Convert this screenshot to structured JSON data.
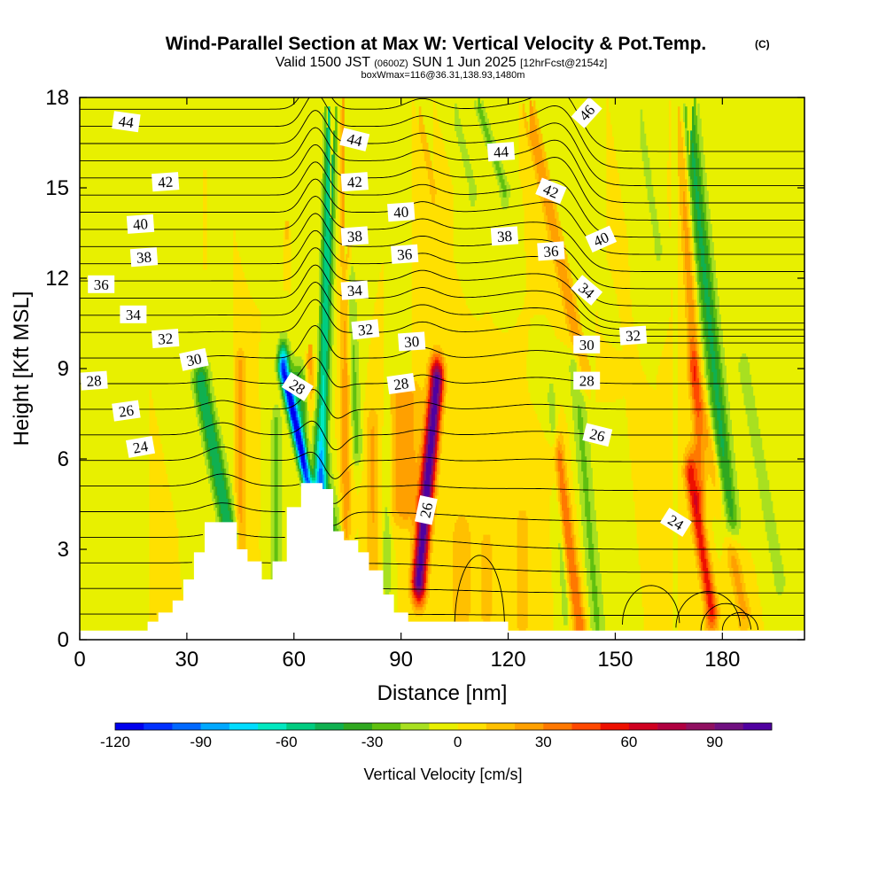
{
  "chart_data": {
    "type": "heatmap",
    "title": "Wind-Parallel Section at Max W: Vertical Velocity & Pot.Temp.",
    "title_mark": "(C)",
    "subtitle": {
      "valid": "Valid 1500 JST",
      "utc": "(0600Z)",
      "date": "SUN 1 Jun 2025",
      "fcst": "[12hrFcst@2154z]",
      "box": "boxWmax=116@36.31,138.93,1480m"
    },
    "xlabel": "Distance [nm]",
    "ylabel": "Height [Kft MSL]",
    "xlim": [
      0,
      203
    ],
    "ylim": [
      0,
      18
    ],
    "xticks": [
      0,
      30,
      60,
      90,
      120,
      150,
      180
    ],
    "yticks": [
      0,
      3,
      6,
      9,
      12,
      15,
      18
    ],
    "colorbar": {
      "label": "Vertical Velocity [cm/s]",
      "ticks": [
        -120,
        -90,
        -60,
        -30,
        0,
        30,
        60,
        90
      ],
      "min": -120,
      "max": 110,
      "step": 10,
      "colors": [
        "#0000ee",
        "#0030ff",
        "#0068ff",
        "#00a8ff",
        "#00dcff",
        "#00e8c0",
        "#00cc80",
        "#10b050",
        "#30a820",
        "#60c010",
        "#a8e020",
        "#e8f000",
        "#ffe000",
        "#ffc000",
        "#ffa000",
        "#ff7800",
        "#ff4800",
        "#ee1000",
        "#d00020",
        "#b00040",
        "#901060",
        "#701080",
        "#5000a0"
      ]
    },
    "terrain": [
      [
        0,
        0.3
      ],
      [
        19,
        0.3
      ],
      [
        19,
        0.6
      ],
      [
        22,
        0.6
      ],
      [
        22,
        0.9
      ],
      [
        26,
        0.9
      ],
      [
        26,
        1.3
      ],
      [
        29,
        1.3
      ],
      [
        29,
        2.0
      ],
      [
        32,
        2.0
      ],
      [
        32,
        2.9
      ],
      [
        35,
        2.9
      ],
      [
        35,
        3.9
      ],
      [
        44,
        3.9
      ],
      [
        44,
        3.0
      ],
      [
        47,
        3.0
      ],
      [
        47,
        2.6
      ],
      [
        51,
        2.6
      ],
      [
        51,
        2.0
      ],
      [
        54,
        2.0
      ],
      [
        54,
        2.6
      ],
      [
        58,
        2.6
      ],
      [
        58,
        4.4
      ],
      [
        62,
        4.4
      ],
      [
        62,
        5.2
      ],
      [
        68,
        5.2
      ],
      [
        68,
        5.0
      ],
      [
        71,
        5.0
      ],
      [
        71,
        3.6
      ],
      [
        74,
        3.6
      ],
      [
        74,
        3.3
      ],
      [
        78,
        3.3
      ],
      [
        78,
        2.9
      ],
      [
        81,
        2.9
      ],
      [
        81,
        2.3
      ],
      [
        85,
        2.3
      ],
      [
        85,
        1.5
      ],
      [
        88,
        1.5
      ],
      [
        88,
        0.9
      ],
      [
        92,
        0.9
      ],
      [
        92,
        0.6
      ],
      [
        120,
        0.6
      ],
      [
        120,
        0.3
      ],
      [
        203,
        0.3
      ]
    ],
    "w_features": [
      {
        "x": 95.0,
        "x0": 5.0,
        "z0": 2.0,
        "z1": 8.6,
        "sx": 2.0,
        "peak": 108
      },
      {
        "x": 91.0,
        "x0": 0,
        "z0": 4.5,
        "z1": 8.0,
        "sx": 4.5,
        "peak": 28
      },
      {
        "x": 67.5,
        "x0": 3.0,
        "z0": 5.0,
        "z1": 18.0,
        "sx": 1.6,
        "peak": -60
      },
      {
        "x": 69.0,
        "x0": -12.0,
        "z0": 2.5,
        "z1": 9.0,
        "sx": 1.5,
        "peak": -105
      },
      {
        "x": 71.0,
        "x0": -10.0,
        "z0": 3.0,
        "z1": 8.5,
        "sx": 3.5,
        "peak": -38
      },
      {
        "x": 74.5,
        "x0": 0,
        "z0": 3.0,
        "z1": 18.0,
        "sx": 1.4,
        "peak": 28
      },
      {
        "x": 64.5,
        "x0": 0,
        "z0": 5.5,
        "z1": 18.0,
        "sx": 1.4,
        "peak": 32
      },
      {
        "x": 42.0,
        "x0": -8.0,
        "z0": 3.5,
        "z1": 8.5,
        "sx": 2.4,
        "peak": -50
      },
      {
        "x": 45.0,
        "x0": 0,
        "z0": 3.0,
        "z1": 9.0,
        "sx": 1.6,
        "peak": 24
      },
      {
        "x": 55.0,
        "x0": 0,
        "z0": 1.0,
        "z1": 7.0,
        "sx": 1.4,
        "peak": -26
      },
      {
        "x": 77.5,
        "x0": -2.0,
        "z0": 6.5,
        "z1": 12.0,
        "sx": 1.6,
        "peak": -24
      },
      {
        "x": 82.0,
        "x0": 0,
        "z0": 2.5,
        "z1": 7.0,
        "sx": 1.8,
        "peak": 20
      },
      {
        "x": 86.0,
        "x0": 0,
        "z0": 2.0,
        "z1": 7.0,
        "sx": 1.2,
        "peak": -18
      },
      {
        "x": 177.0,
        "x0": -6.0,
        "z0": 1.0,
        "z1": 5.5,
        "sx": 1.8,
        "peak": 55
      },
      {
        "x": 182.0,
        "x0": -12.0,
        "z0": 4.0,
        "z1": 18.0,
        "sx": 2.6,
        "peak": -42
      },
      {
        "x": 174.0,
        "x0": -6.0,
        "z0": 5.0,
        "z1": 18.0,
        "sx": 1.6,
        "peak": 28
      },
      {
        "x": 186.0,
        "x0": -14.0,
        "z0": 1.0,
        "z1": 9.0,
        "sx": 2.0,
        "peak": 24
      },
      {
        "x": 140.0,
        "x0": -6.0,
        "z0": 0.5,
        "z1": 6.0,
        "sx": 1.8,
        "peak": 40
      },
      {
        "x": 145.0,
        "x0": -6.0,
        "z0": 0.5,
        "z1": 9.0,
        "sx": 2.2,
        "peak": -22
      },
      {
        "x": 136.0,
        "x0": -4.0,
        "z0": 1.0,
        "z1": 8.0,
        "sx": 1.2,
        "peak": -16
      },
      {
        "x": 141.0,
        "x0": -16.0,
        "z0": 9.0,
        "z1": 18.0,
        "sx": 2.0,
        "peak": 28
      },
      {
        "x": 107.0,
        "x0": 0,
        "z0": 1.0,
        "z1": 3.5,
        "sx": 3.0,
        "peak": 18
      },
      {
        "x": 114.0,
        "x0": 0,
        "z0": 1.0,
        "z1": 3.0,
        "sx": 2.0,
        "peak": 16
      },
      {
        "x": 124.0,
        "x0": 0,
        "z0": 0.5,
        "z1": 4.0,
        "sx": 3.0,
        "peak": 12
      },
      {
        "x": 119.0,
        "x0": -8.0,
        "z0": 15.0,
        "z1": 18.0,
        "sx": 1.5,
        "peak": -24
      },
      {
        "x": 110.0,
        "x0": -6.0,
        "z0": 15.0,
        "z1": 18.0,
        "sx": 1.2,
        "peak": -18
      },
      {
        "x": 99.0,
        "x0": -5.0,
        "z0": 15.0,
        "z1": 18.0,
        "sx": 1.2,
        "peak": 16
      },
      {
        "x": 162.0,
        "x0": -6.0,
        "z0": 13.0,
        "z1": 18.0,
        "sx": 1.4,
        "peak": -14
      },
      {
        "x": 196.0,
        "x0": -10.0,
        "z0": 2.0,
        "z1": 9.0,
        "sx": 2.5,
        "peak": -14
      },
      {
        "x": 49.0,
        "x0": 0,
        "z0": 14.0,
        "z1": 18.0,
        "sx": 1.0,
        "peak": -18
      },
      {
        "x": 58.0,
        "x0": 0,
        "z0": 14.0,
        "z1": 18.0,
        "sx": 1.0,
        "peak": 22
      },
      {
        "x": 35.0,
        "x0": 0,
        "z0": 16.0,
        "z1": 18.0,
        "sx": 1.2,
        "peak": 14
      }
    ],
    "theta_levels": [
      22,
      23,
      24,
      25,
      26,
      27,
      28,
      29,
      30,
      31,
      32,
      33,
      34,
      35,
      36,
      37,
      38,
      39,
      40,
      41,
      42,
      43,
      44,
      45,
      46,
      47
    ],
    "theta_labels": [
      {
        "text": "44",
        "x": 13,
        "z": 17.2,
        "rot": 8
      },
      {
        "text": "42",
        "x": 24,
        "z": 15.2,
        "rot": -4
      },
      {
        "text": "40",
        "x": 17,
        "z": 13.8,
        "rot": -4
      },
      {
        "text": "38",
        "x": 18,
        "z": 12.7,
        "rot": -4
      },
      {
        "text": "36",
        "x": 6,
        "z": 11.8,
        "rot": 0
      },
      {
        "text": "34",
        "x": 15,
        "z": 10.8,
        "rot": 0
      },
      {
        "text": "32",
        "x": 24,
        "z": 10.0,
        "rot": -4
      },
      {
        "text": "30",
        "x": 32,
        "z": 9.3,
        "rot": -12
      },
      {
        "text": "28",
        "x": 4,
        "z": 8.6,
        "rot": -4
      },
      {
        "text": "26",
        "x": 13,
        "z": 7.6,
        "rot": -8
      },
      {
        "text": "24",
        "x": 17,
        "z": 6.4,
        "rot": -10
      },
      {
        "text": "28",
        "x": 61,
        "z": 8.4,
        "rot": 32
      },
      {
        "text": "44",
        "x": 77,
        "z": 16.6,
        "rot": 14
      },
      {
        "text": "42",
        "x": 77,
        "z": 15.2,
        "rot": -4
      },
      {
        "text": "40",
        "x": 90,
        "z": 14.2,
        "rot": -4
      },
      {
        "text": "38",
        "x": 77,
        "z": 13.4,
        "rot": -4
      },
      {
        "text": "36",
        "x": 91,
        "z": 12.8,
        "rot": -4
      },
      {
        "text": "34",
        "x": 77,
        "z": 11.6,
        "rot": -4
      },
      {
        "text": "32",
        "x": 80,
        "z": 10.3,
        "rot": -6
      },
      {
        "text": "30",
        "x": 93,
        "z": 9.9,
        "rot": -4
      },
      {
        "text": "28",
        "x": 90,
        "z": 8.5,
        "rot": -8
      },
      {
        "text": "26",
        "x": 97,
        "z": 4.3,
        "rot": -78
      },
      {
        "text": "44",
        "x": 118,
        "z": 16.2,
        "rot": -4
      },
      {
        "text": "38",
        "x": 119,
        "z": 13.4,
        "rot": -4
      },
      {
        "text": "36",
        "x": 132,
        "z": 12.9,
        "rot": -4
      },
      {
        "text": "42",
        "x": 132,
        "z": 14.9,
        "rot": 22
      },
      {
        "text": "46",
        "x": 142,
        "z": 17.5,
        "rot": -48
      },
      {
        "text": "40",
        "x": 146,
        "z": 13.3,
        "rot": -24
      },
      {
        "text": "34",
        "x": 142,
        "z": 11.6,
        "rot": 40
      },
      {
        "text": "30",
        "x": 142,
        "z": 9.8,
        "rot": 0
      },
      {
        "text": "32",
        "x": 155,
        "z": 10.1,
        "rot": -4
      },
      {
        "text": "28",
        "x": 142,
        "z": 8.6,
        "rot": 0
      },
      {
        "text": "26",
        "x": 145,
        "z": 6.8,
        "rot": 14
      },
      {
        "text": "24",
        "x": 167,
        "z": 3.9,
        "rot": 32
      }
    ]
  }
}
